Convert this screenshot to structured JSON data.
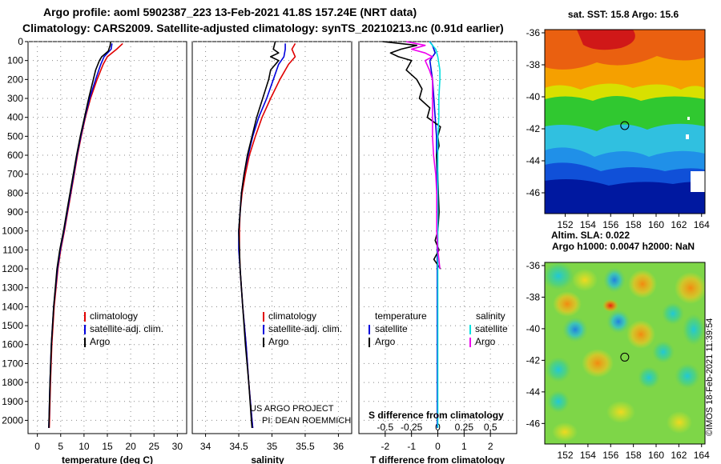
{
  "title": {
    "line1": "Argo profile: aoml 5902387_223 13-Feb-2021 41.8S 157.24E (NRT data)",
    "line2": "Climatology: CARS2009. Satellite-adjusted climatology: synTS_20210213.nc (0.91d earlier)"
  },
  "credit": "©IMOS 18-Feb-2021 11:39:54",
  "colors": {
    "argo": "#000000",
    "clim": "#e00000",
    "sat": "#0000dd",
    "sal_sat": "#00e0e0",
    "sal_diff": "#ee00ee"
  },
  "chart_data": [
    {
      "type": "line",
      "xlabel": "temperature (deg C)",
      "xlim": [
        -2,
        32
      ],
      "xticks": [
        0,
        5,
        10,
        15,
        20,
        25,
        30
      ],
      "xtick_labels": [
        "0",
        "5",
        "10",
        "15",
        "20",
        "25",
        "30"
      ],
      "ylim": [
        2070,
        0
      ],
      "yticks": [
        0,
        100,
        200,
        300,
        400,
        500,
        600,
        700,
        800,
        900,
        1000,
        1100,
        1200,
        1300,
        1400,
        1500,
        1600,
        1700,
        1800,
        1900,
        2000
      ],
      "ytick_labels": [
        "0",
        "100",
        "200",
        "300",
        "400",
        "500",
        "600",
        "700",
        "800",
        "900",
        "1000",
        "1100",
        "1200",
        "1300",
        "1400",
        "1500",
        "1600",
        "1700",
        "1800",
        "1900",
        "2000"
      ],
      "legend": [
        "climatology",
        "satellite-adj. clim.",
        "Argo"
      ],
      "series": [
        {
          "name": "climatology",
          "depth": [
            10,
            40,
            80,
            120,
            200,
            300,
            400,
            500,
            600,
            700,
            800,
            900,
            1000,
            1100,
            1200,
            1400,
            1600,
            1800,
            2000,
            2040
          ],
          "values": [
            18.3,
            17.0,
            15.0,
            14.1,
            12.8,
            11.4,
            10.3,
            9.4,
            8.6,
            7.9,
            7.2,
            6.5,
            5.8,
            5.0,
            4.4,
            3.6,
            3.1,
            2.8,
            2.6,
            2.55
          ]
        },
        {
          "name": "satellite-adj. clim.",
          "depth": [
            10,
            40,
            80,
            120,
            200,
            300,
            400,
            500,
            600,
            700,
            800,
            900,
            1000,
            1100,
            1200,
            1400,
            1600,
            1800,
            2000,
            2040
          ],
          "values": [
            16.0,
            15.8,
            14.3,
            13.6,
            12.5,
            11.2,
            10.2,
            9.3,
            8.5,
            7.8,
            7.1,
            6.4,
            5.7,
            4.9,
            4.3,
            3.5,
            3.0,
            2.7,
            2.5,
            2.45
          ]
        },
        {
          "name": "Argo",
          "depth": [
            0,
            20,
            50,
            80,
            100,
            150,
            200,
            300,
            400,
            500,
            600,
            700,
            800,
            900,
            1000,
            1100,
            1200,
            1400,
            1600,
            1800,
            2000,
            2040
          ],
          "values": [
            15.7,
            15.6,
            15.2,
            13.8,
            13.3,
            12.5,
            12.0,
            11.0,
            10.1,
            9.2,
            8.4,
            7.7,
            7.0,
            6.3,
            5.6,
            4.8,
            4.2,
            3.5,
            3.0,
            2.7,
            2.5,
            2.45
          ]
        }
      ]
    },
    {
      "type": "line",
      "xlabel": "salinity",
      "xlim": [
        33.8,
        36.2
      ],
      "xticks": [
        34,
        34.5,
        35,
        35.5,
        36
      ],
      "xtick_labels": [
        "34",
        "34.5",
        "35",
        "35.5",
        "36"
      ],
      "ylim": [
        2070,
        0
      ],
      "legend": [
        "climatology",
        "satellite-adj. clim.",
        "Argo"
      ],
      "annotation": [
        "US ARGO PROJECT",
        "PI: DEAN ROEMMICH"
      ],
      "series": [
        {
          "name": "climatology",
          "depth": [
            10,
            40,
            80,
            120,
            200,
            300,
            400,
            500,
            600,
            700,
            800,
            900,
            1000,
            1100,
            1200,
            1400,
            1600,
            1800,
            2000,
            2040
          ],
          "values": [
            35.35,
            35.3,
            35.35,
            35.25,
            35.12,
            34.98,
            34.85,
            34.75,
            34.66,
            34.6,
            34.55,
            34.52,
            34.51,
            34.51,
            34.52,
            34.56,
            34.61,
            34.65,
            34.7,
            34.71
          ]
        },
        {
          "name": "satellite-adj. clim.",
          "depth": [
            10,
            40,
            80,
            120,
            200,
            300,
            400,
            500,
            600,
            700,
            800,
            900,
            1000,
            1100,
            1200,
            1400,
            1600,
            1800,
            2000,
            2040
          ],
          "values": [
            35.2,
            35.2,
            35.18,
            35.1,
            35.02,
            34.92,
            34.8,
            34.71,
            34.64,
            34.58,
            34.54,
            34.52,
            34.5,
            34.5,
            34.52,
            34.56,
            34.61,
            34.65,
            34.7,
            34.71
          ]
        },
        {
          "name": "Argo",
          "depth": [
            0,
            40,
            60,
            80,
            100,
            150,
            200,
            300,
            400,
            500,
            600,
            700,
            800,
            900,
            1000,
            1100,
            1200,
            1400,
            1600,
            1800,
            2000,
            2040
          ],
          "values": [
            35.05,
            35.02,
            35.1,
            34.98,
            35.1,
            34.98,
            34.95,
            34.86,
            34.77,
            34.7,
            34.63,
            34.58,
            34.54,
            34.52,
            34.5,
            34.51,
            34.52,
            34.56,
            34.6,
            34.65,
            34.69,
            34.7
          ]
        }
      ]
    },
    {
      "type": "line",
      "xlabel": "T difference from climatology",
      "xlim": [
        -3,
        3
      ],
      "xticks": [
        -2,
        -1,
        0,
        1,
        2
      ],
      "xtick_labels": [
        "-2",
        "-1",
        "0",
        "1",
        "2"
      ],
      "secondary_xlabel": "S difference from climatology",
      "secondary_xlim": [
        -0.75,
        0.75
      ],
      "secondary_xticks": [
        -0.5,
        -0.25,
        0,
        0.25,
        0.5
      ],
      "secondary_xtick_labels": [
        "-0.5",
        "-0.25",
        "0",
        "0.25",
        "0.5"
      ],
      "ylim": [
        2070,
        0
      ],
      "legend_left_title": "temperature",
      "legend_left": [
        "satellite",
        "Argo"
      ],
      "legend_right_title": "salinity",
      "legend_right": [
        "satellite",
        "Argo"
      ],
      "series": [
        {
          "name": "temperature satellite",
          "axis": "T",
          "depth": [
            0,
            20,
            60,
            100,
            200,
            300,
            400,
            500,
            600,
            700,
            800,
            900,
            1000,
            1100,
            1200,
            1300,
            1400,
            1600,
            2000,
            2040
          ],
          "values": [
            -0.3,
            -0.2,
            -0.1,
            -0.3,
            -0.2,
            -0.15,
            -0.1,
            -0.05,
            -0.05,
            -0.03,
            -0.02,
            -0.02,
            -0.02,
            -0.02,
            -0.02,
            -0.02,
            -0.02,
            -0.02,
            -0.02,
            -0.02
          ]
        },
        {
          "name": "temperature Argo",
          "axis": "T",
          "depth": [
            0,
            20,
            40,
            60,
            80,
            100,
            150,
            200,
            250,
            300,
            350,
            400,
            450,
            500,
            550,
            600,
            700,
            800,
            900,
            1000,
            1050,
            1100,
            1150,
            1200
          ],
          "values": [
            -2.1,
            -0.8,
            -1.4,
            -1.8,
            -1.5,
            -1.0,
            -1.2,
            -0.8,
            -0.6,
            -0.7,
            -0.3,
            -0.4,
            0.1,
            0.0,
            0.05,
            -0.05,
            0.0,
            0.02,
            0.05,
            0.0,
            -0.1,
            0.05,
            -0.15,
            0.1
          ]
        },
        {
          "name": "salinity satellite",
          "axis": "S",
          "depth": [
            0,
            40,
            80,
            150,
            200,
            300,
            400,
            500,
            600,
            700,
            800,
            1000,
            1200,
            1400,
            1600,
            1800,
            2000,
            2040
          ],
          "values": [
            -0.08,
            -0.02,
            0.0,
            0.02,
            0.02,
            0.01,
            0.01,
            0.0,
            0.0,
            0.0,
            0.0,
            0.0,
            0.0,
            0.0,
            0.0,
            0.0,
            0.0,
            0.0
          ]
        },
        {
          "name": "salinity Argo",
          "axis": "S",
          "depth": [
            0,
            20,
            40,
            60,
            80,
            100,
            150,
            200,
            300,
            400,
            500,
            600,
            700,
            800,
            900,
            1000,
            1100,
            1150,
            1200
          ],
          "values": [
            -0.3,
            -0.12,
            -0.25,
            -0.12,
            -0.05,
            -0.12,
            -0.08,
            -0.05,
            -0.05,
            -0.05,
            -0.05,
            -0.04,
            -0.02,
            -0.01,
            -0.01,
            -0.01,
            0.0,
            0.01,
            0.02
          ]
        }
      ]
    },
    {
      "type": "heatmap",
      "title": "sat. SST: 15.8 Argo: 15.6",
      "xlim": [
        150.2,
        164.3
      ],
      "ylim": [
        -47.3,
        -35.8
      ],
      "xticks": [
        152,
        154,
        156,
        158,
        160,
        162,
        164
      ],
      "xtick_labels": [
        "152",
        "154",
        "156",
        "158",
        "160",
        "162",
        "164"
      ],
      "yticks": [
        -36,
        -38,
        -40,
        -42,
        -44,
        -46
      ],
      "ytick_labels": [
        "-36",
        "-38",
        "-40",
        "-42",
        "-44",
        "-46"
      ],
      "marker": {
        "lon": 157.24,
        "lat": -41.8
      }
    },
    {
      "type": "heatmap",
      "title_line1": "Altim. SLA: 0.022",
      "title_line2": "Argo h1000: 0.0047 h2000: NaN",
      "xlim": [
        150.2,
        164.3
      ],
      "ylim": [
        -47.3,
        -35.8
      ],
      "xticks": [
        152,
        154,
        156,
        158,
        160,
        162,
        164
      ],
      "xtick_labels": [
        "152",
        "154",
        "156",
        "158",
        "160",
        "162",
        "164"
      ],
      "yticks": [
        -36,
        -38,
        -40,
        -42,
        -44,
        -46
      ],
      "ytick_labels": [
        "-36",
        "-38",
        "-40",
        "-42",
        "-44",
        "-46"
      ],
      "marker": {
        "lon": 157.24,
        "lat": -41.8
      }
    }
  ]
}
